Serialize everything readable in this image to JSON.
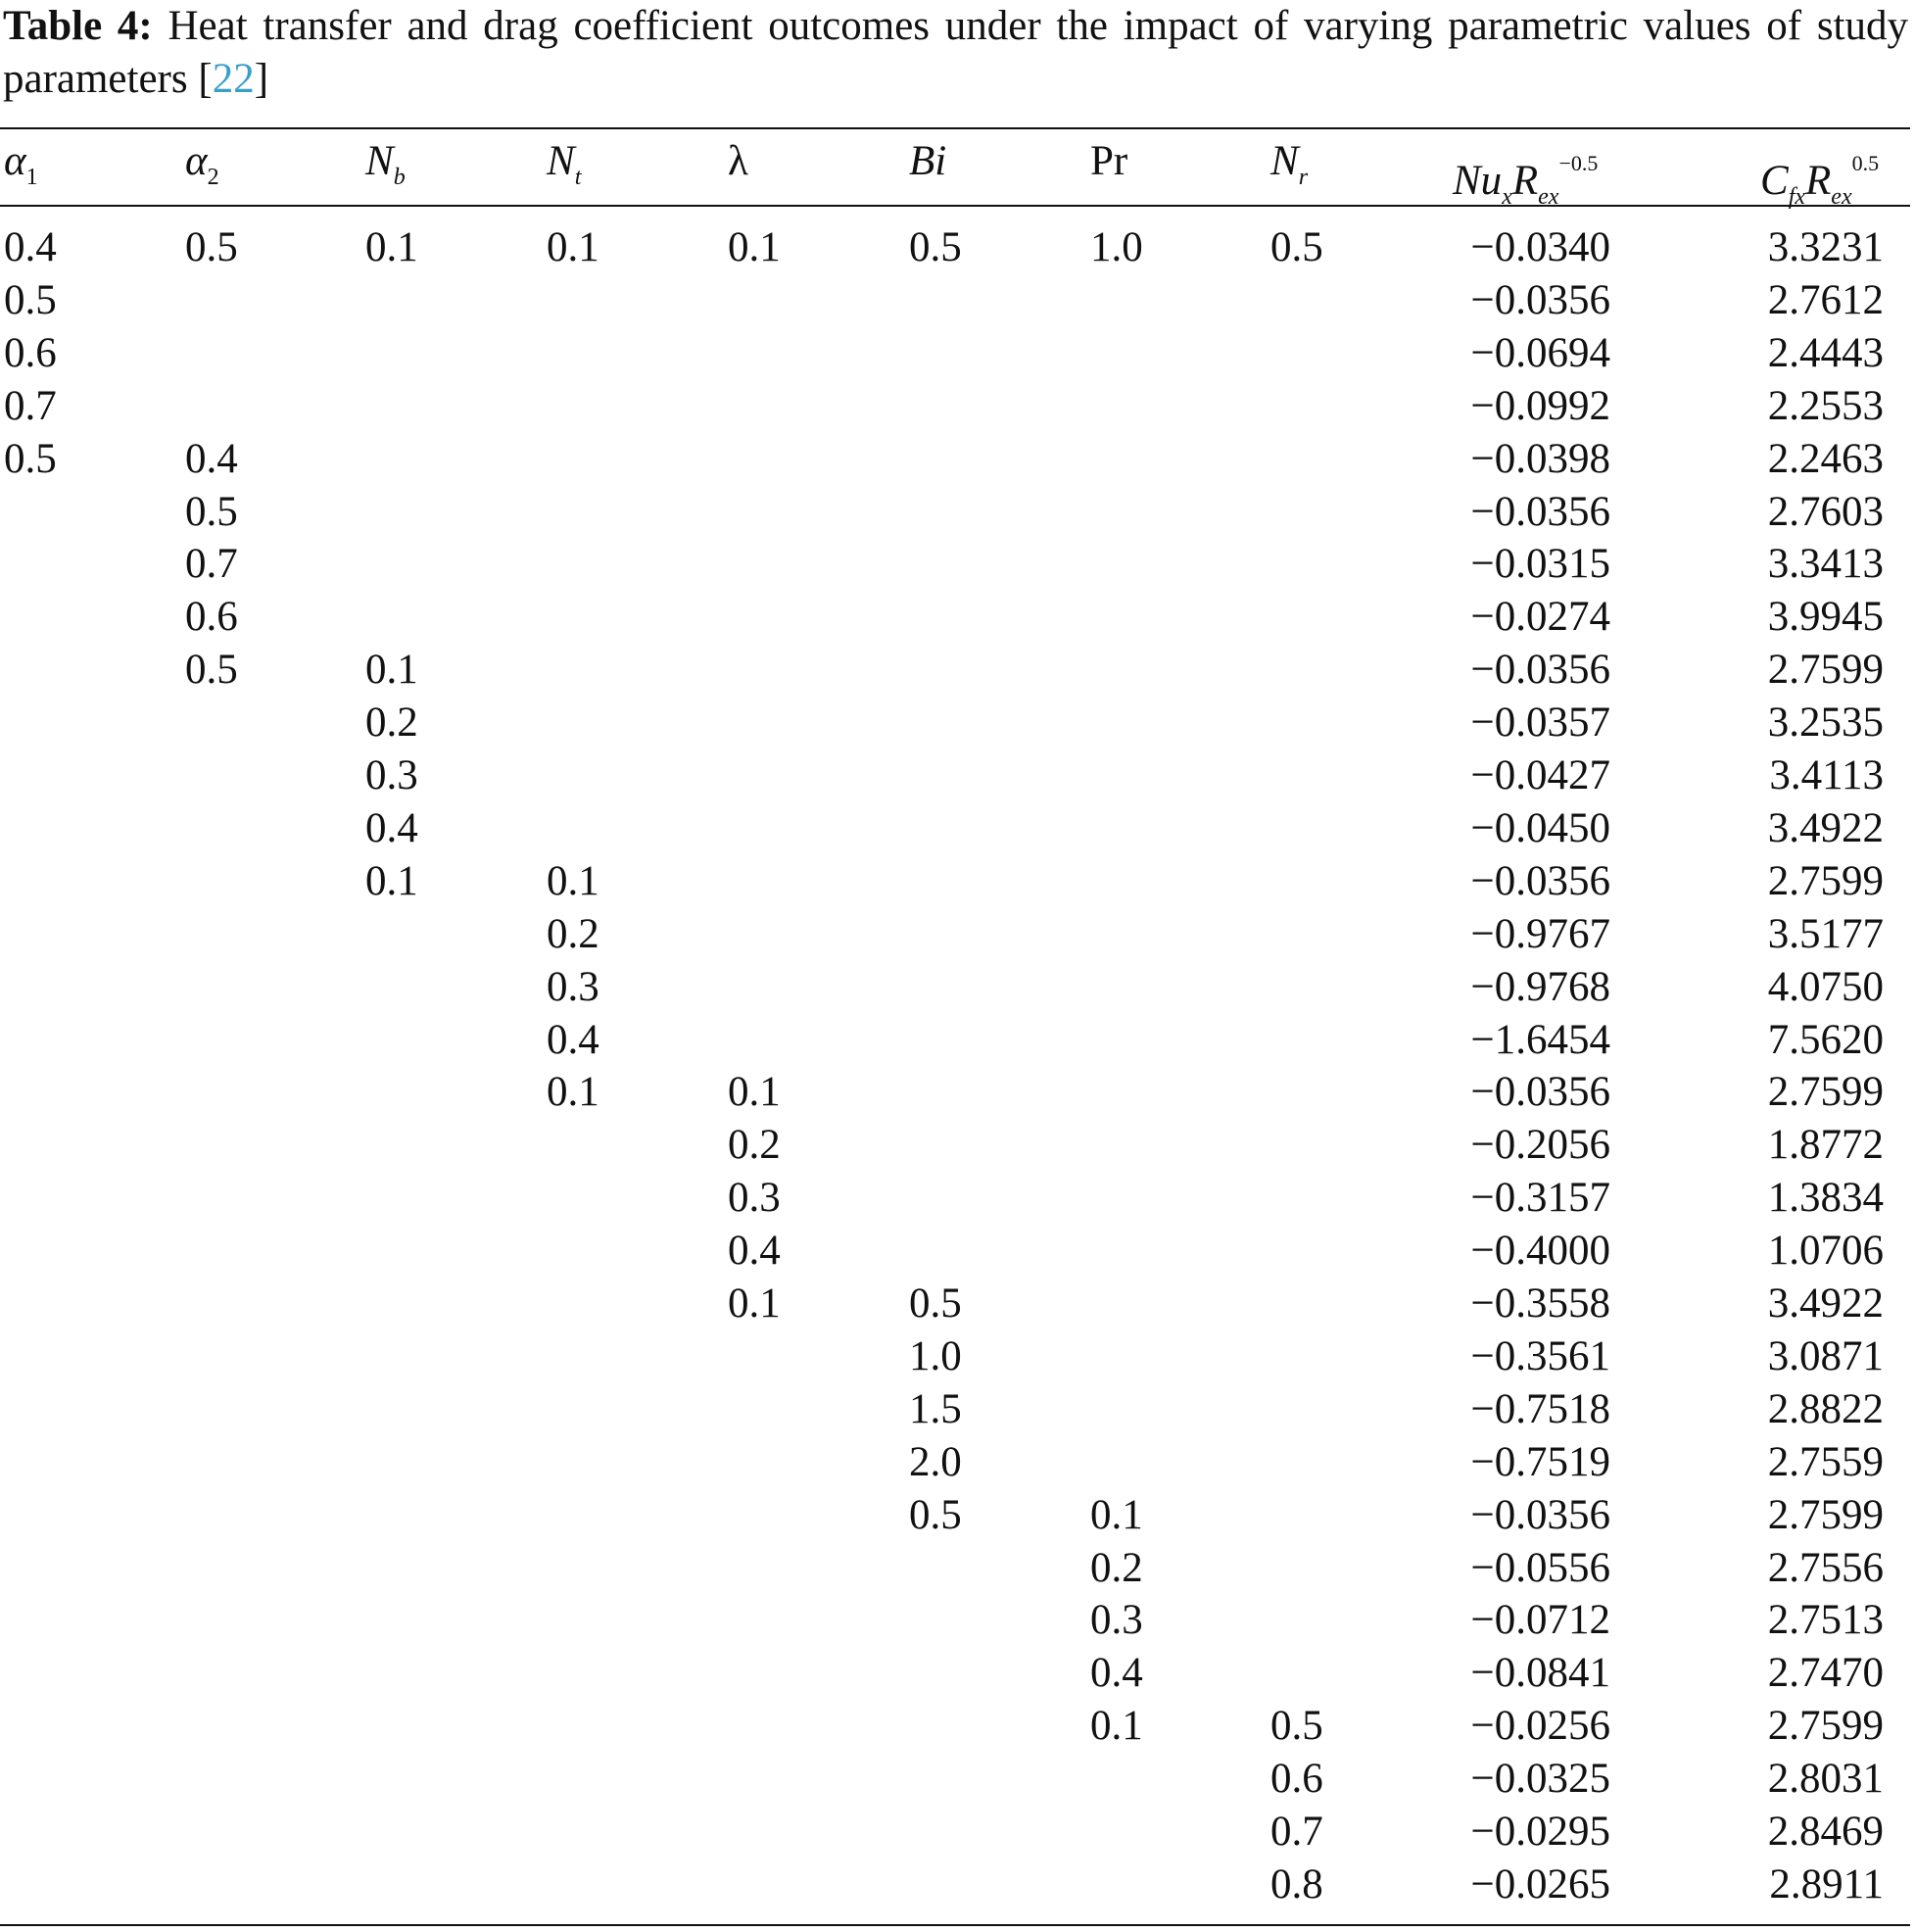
{
  "caption": {
    "label": "Table 4:",
    "text": "Heat transfer and drag coefficient outcomes under the impact of varying parametric values of study parameters [",
    "ref": "22",
    "text_end": "]"
  },
  "table": {
    "headers": [
      [
        {
          "text": "α",
          "kind": "it"
        },
        {
          "text": "1",
          "kind": "sub-rm"
        }
      ],
      [
        {
          "text": "α",
          "kind": "it"
        },
        {
          "text": "2",
          "kind": "sub-rm"
        }
      ],
      [
        {
          "text": "N",
          "kind": "it"
        },
        {
          "text": "b",
          "kind": "sub"
        }
      ],
      [
        {
          "text": "N",
          "kind": "it"
        },
        {
          "text": "t",
          "kind": "sub"
        }
      ],
      [
        {
          "text": "λ",
          "kind": "rm"
        }
      ],
      [
        {
          "text": "Bi",
          "kind": "it"
        }
      ],
      [
        {
          "text": "Pr",
          "kind": "rm"
        }
      ],
      [
        {
          "text": "N",
          "kind": "it"
        },
        {
          "text": "r",
          "kind": "sub"
        }
      ],
      [
        {
          "text": "Nu",
          "kind": "it"
        },
        {
          "text": "x",
          "kind": "sub"
        },
        {
          "text": "R",
          "kind": "it"
        },
        {
          "text": "ex",
          "kind": "sub"
        },
        {
          "text": "−0.5",
          "kind": "sup"
        }
      ],
      [
        {
          "text": "C",
          "kind": "it"
        },
        {
          "text": "fx",
          "kind": "sub"
        },
        {
          "text": "R",
          "kind": "it"
        },
        {
          "text": "ex",
          "kind": "sub"
        },
        {
          "text": "0.5",
          "kind": "sup"
        }
      ]
    ],
    "rows": [
      [
        "0.4",
        "0.5",
        "0.1",
        "0.1",
        "0.1",
        "0.5",
        "1.0",
        "0.5",
        "−0.0340",
        "3.3231"
      ],
      [
        "0.5",
        null,
        null,
        null,
        null,
        null,
        null,
        null,
        "−0.0356",
        "2.7612"
      ],
      [
        "0.6",
        null,
        null,
        null,
        null,
        null,
        null,
        null,
        "−0.0694",
        "2.4443"
      ],
      [
        "0.7",
        null,
        null,
        null,
        null,
        null,
        null,
        null,
        "−0.0992",
        "2.2553"
      ],
      [
        "0.5",
        "0.4",
        null,
        null,
        null,
        null,
        null,
        null,
        "−0.0398",
        "2.2463"
      ],
      [
        null,
        "0.5",
        null,
        null,
        null,
        null,
        null,
        null,
        "−0.0356",
        "2.7603"
      ],
      [
        null,
        "0.7",
        null,
        null,
        null,
        null,
        null,
        null,
        "−0.0315",
        "3.3413"
      ],
      [
        null,
        "0.6",
        null,
        null,
        null,
        null,
        null,
        null,
        "−0.0274",
        "3.9945"
      ],
      [
        null,
        "0.5",
        "0.1",
        null,
        null,
        null,
        null,
        null,
        "−0.0356",
        "2.7599"
      ],
      [
        null,
        null,
        "0.2",
        null,
        null,
        null,
        null,
        null,
        "−0.0357",
        "3.2535"
      ],
      [
        null,
        null,
        "0.3",
        null,
        null,
        null,
        null,
        null,
        "−0.0427",
        "3.4113"
      ],
      [
        null,
        null,
        "0.4",
        null,
        null,
        null,
        null,
        null,
        "−0.0450",
        "3.4922"
      ],
      [
        null,
        null,
        "0.1",
        "0.1",
        null,
        null,
        null,
        null,
        "−0.0356",
        "2.7599"
      ],
      [
        null,
        null,
        null,
        "0.2",
        null,
        null,
        null,
        null,
        "−0.9767",
        "3.5177"
      ],
      [
        null,
        null,
        null,
        "0.3",
        null,
        null,
        null,
        null,
        "−0.9768",
        "4.0750"
      ],
      [
        null,
        null,
        null,
        "0.4",
        null,
        null,
        null,
        null,
        "−1.6454",
        "7.5620"
      ],
      [
        null,
        null,
        null,
        "0.1",
        "0.1",
        null,
        null,
        null,
        "−0.0356",
        "2.7599"
      ],
      [
        null,
        null,
        null,
        null,
        "0.2",
        null,
        null,
        null,
        "−0.2056",
        "1.8772"
      ],
      [
        null,
        null,
        null,
        null,
        "0.3",
        null,
        null,
        null,
        "−0.3157",
        "1.3834"
      ],
      [
        null,
        null,
        null,
        null,
        "0.4",
        null,
        null,
        null,
        "−0.4000",
        "1.0706"
      ],
      [
        null,
        null,
        null,
        null,
        "0.1",
        "0.5",
        null,
        null,
        "−0.3558",
        "3.4922"
      ],
      [
        null,
        null,
        null,
        null,
        null,
        "1.0",
        null,
        null,
        "−0.3561",
        "3.0871"
      ],
      [
        null,
        null,
        null,
        null,
        null,
        "1.5",
        null,
        null,
        "−0.7518",
        "2.8822"
      ],
      [
        null,
        null,
        null,
        null,
        null,
        "2.0",
        null,
        null,
        "−0.7519",
        "2.7559"
      ],
      [
        null,
        null,
        null,
        null,
        null,
        "0.5",
        "0.1",
        null,
        "−0.0356",
        "2.7599"
      ],
      [
        null,
        null,
        null,
        null,
        null,
        null,
        "0.2",
        null,
        "−0.0556",
        "2.7556"
      ],
      [
        null,
        null,
        null,
        null,
        null,
        null,
        "0.3",
        null,
        "−0.0712",
        "2.7513"
      ],
      [
        null,
        null,
        null,
        null,
        null,
        null,
        "0.4",
        null,
        "−0.0841",
        "2.7470"
      ],
      [
        null,
        null,
        null,
        null,
        null,
        null,
        "0.1",
        "0.5",
        "−0.0256",
        "2.7599"
      ],
      [
        null,
        null,
        null,
        null,
        null,
        null,
        null,
        "0.6",
        "−0.0325",
        "2.8031"
      ],
      [
        null,
        null,
        null,
        null,
        null,
        null,
        null,
        "0.7",
        "−0.0295",
        "2.8469"
      ],
      [
        null,
        null,
        null,
        null,
        null,
        null,
        null,
        "0.8",
        "−0.0265",
        "2.8911"
      ]
    ]
  }
}
